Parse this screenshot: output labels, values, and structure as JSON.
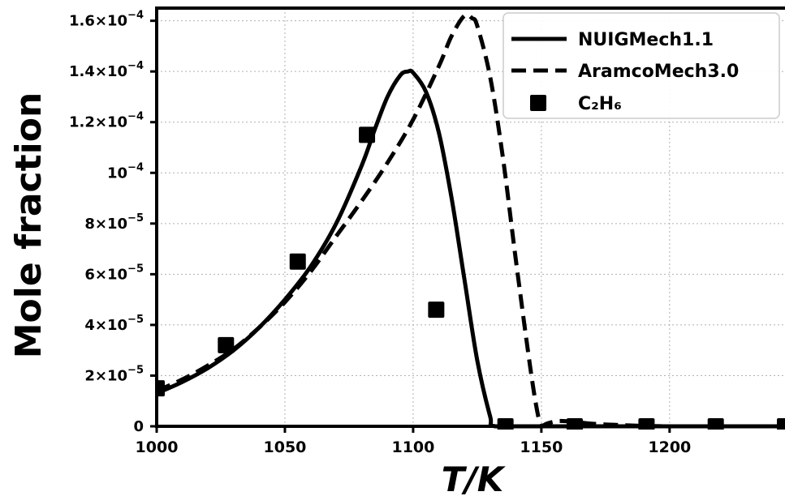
{
  "chart_data": {
    "type": "line",
    "title": "",
    "xlabel": "T/K",
    "ylabel": "Mole fraction",
    "xlim": [
      1000,
      1245
    ],
    "ylim": [
      0,
      0.000165
    ],
    "grid": true,
    "legend_position": "top-right",
    "x_ticks": [
      {
        "value": 1000,
        "label": "1000"
      },
      {
        "value": 1050,
        "label": "1050"
      },
      {
        "value": 1100,
        "label": "1100"
      },
      {
        "value": 1150,
        "label": "1150"
      },
      {
        "value": 1200,
        "label": "1200"
      }
    ],
    "y_ticks": [
      {
        "value": 0,
        "mantissa": "0",
        "exponent": ""
      },
      {
        "value": 2e-05,
        "mantissa": "2×10",
        "exponent": "−5"
      },
      {
        "value": 4e-05,
        "mantissa": "4×10",
        "exponent": "−5"
      },
      {
        "value": 6e-05,
        "mantissa": "6×10",
        "exponent": "−5"
      },
      {
        "value": 8e-05,
        "mantissa": "8×10",
        "exponent": "−5"
      },
      {
        "value": 0.0001,
        "mantissa": "10",
        "exponent": "−4"
      },
      {
        "value": 0.00012,
        "mantissa": "1.2×10",
        "exponent": "−4"
      },
      {
        "value": 0.00014,
        "mantissa": "1.4×10",
        "exponent": "−4"
      },
      {
        "value": 0.00016,
        "mantissa": "1.6×10",
        "exponent": "−4"
      }
    ],
    "series": [
      {
        "name": "NUIGMech1.1",
        "style": "solid",
        "color": "#000000",
        "x": [
          1000,
          1010,
          1020,
          1030,
          1040,
          1050,
          1060,
          1070,
          1080,
          1085,
          1090,
          1095,
          1098,
          1100,
          1105,
          1110,
          1115,
          1120,
          1125,
          1130,
          1132,
          1150,
          1245
        ],
        "y": [
          1.3e-05,
          1.75e-05,
          2.3e-05,
          3e-05,
          3.9e-05,
          5e-05,
          6.3e-05,
          8e-05,
          0.000103,
          0.000117,
          0.00013,
          0.0001385,
          0.00014,
          0.0001395,
          0.000132,
          0.000116,
          9e-05,
          5.8e-05,
          2.6e-05,
          4e-06,
          0,
          0,
          0
        ]
      },
      {
        "name": "AramcoMech3.0",
        "style": "dashed",
        "color": "#000000",
        "x": [
          1000,
          1010,
          1020,
          1030,
          1040,
          1050,
          1060,
          1070,
          1080,
          1090,
          1100,
          1110,
          1115,
          1120,
          1123,
          1125,
          1130,
          1135,
          1140,
          1145,
          1148,
          1150,
          1152,
          1156,
          1160,
          1165,
          1170,
          1180,
          1200,
          1245
        ],
        "y": [
          1.4e-05,
          1.85e-05,
          2.4e-05,
          3.05e-05,
          3.9e-05,
          4.9e-05,
          6.1e-05,
          7.5e-05,
          8.9e-05,
          0.000104,
          0.000121,
          0.000142,
          0.000154,
          0.000162,
          0.000161,
          0.000158,
          0.000138,
          0.000106,
          6.6e-05,
          2.8e-05,
          8e-06,
          0,
          1e-06,
          2e-06,
          2e-06,
          1.5e-06,
          1e-06,
          5e-07,
          0,
          0
        ]
      },
      {
        "name": "C₂H₆",
        "style": "markers",
        "marker": "square",
        "color": "#000000",
        "x": [
          1000,
          1027,
          1055,
          1082,
          1109,
          1136,
          1163,
          1191,
          1218,
          1245
        ],
        "y": [
          1.5e-05,
          3.2e-05,
          6.5e-05,
          0.000115,
          4.6e-05,
          0,
          0,
          0,
          0,
          0
        ]
      }
    ]
  }
}
